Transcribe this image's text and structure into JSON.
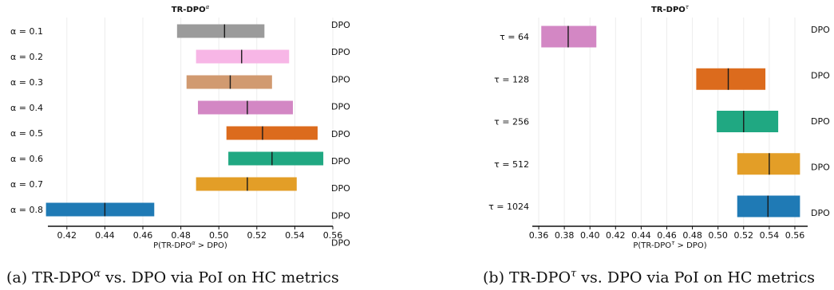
{
  "chart_data": [
    {
      "type": "interval",
      "title_base": "TR-DPO",
      "title_sup": "α",
      "xlabel_pre": "P(TR-DPO",
      "xlabel_sup": "α",
      "xlabel_post": " > DPO)",
      "xlim": [
        0.41,
        0.56
      ],
      "xticks": [
        "0.42",
        "0.44",
        "0.46",
        "0.48",
        "0.50",
        "0.52",
        "0.54",
        "0.56"
      ],
      "right_label": "DPO",
      "grid": true,
      "rows": [
        {
          "label": "α = 0.1",
          "low": 0.478,
          "high": 0.524,
          "mean": 0.503,
          "color": "#9b9b9b"
        },
        {
          "label": "α = 0.2",
          "low": 0.488,
          "high": 0.537,
          "mean": 0.512,
          "color": "#f7b6e6"
        },
        {
          "label": "α = 0.3",
          "low": 0.483,
          "high": 0.528,
          "mean": 0.506,
          "color": "#d19a70"
        },
        {
          "label": "α = 0.4",
          "low": 0.489,
          "high": 0.539,
          "mean": 0.515,
          "color": "#d387c4"
        },
        {
          "label": "α = 0.5",
          "low": 0.504,
          "high": 0.552,
          "mean": 0.523,
          "color": "#dc6b1d"
        },
        {
          "label": "α = 0.6",
          "low": 0.505,
          "high": 0.555,
          "mean": 0.528,
          "color": "#20a882"
        },
        {
          "label": "α = 0.7",
          "low": 0.488,
          "high": 0.541,
          "mean": 0.515,
          "color": "#e39e27"
        },
        {
          "label": "α = 0.8",
          "low": 0.409,
          "high": 0.466,
          "mean": 0.44,
          "color": "#1f7ab5"
        }
      ]
    },
    {
      "type": "interval",
      "title_base": "TR-DPO",
      "title_sup": "τ",
      "xlabel_pre": "P(TR-DPO",
      "xlabel_sup": "τ",
      "xlabel_post": " > DPO)",
      "xlim": [
        0.355,
        0.57
      ],
      "xticks": [
        "0.36",
        "0.38",
        "0.40",
        "0.42",
        "0.44",
        "0.46",
        "0.48",
        "0.50",
        "0.52",
        "0.54",
        "0.56"
      ],
      "right_label": "DPO",
      "grid": true,
      "rows": [
        {
          "label": "τ = 64",
          "low": 0.362,
          "high": 0.405,
          "mean": 0.383,
          "color": "#d387c4"
        },
        {
          "label": "τ = 128",
          "low": 0.483,
          "high": 0.537,
          "mean": 0.508,
          "color": "#dc6b1d"
        },
        {
          "label": "τ = 256",
          "low": 0.499,
          "high": 0.547,
          "mean": 0.52,
          "color": "#20a882"
        },
        {
          "label": "τ = 512",
          "low": 0.515,
          "high": 0.564,
          "mean": 0.54,
          "color": "#e39e27"
        },
        {
          "label": "τ = 1024",
          "low": 0.515,
          "high": 0.564,
          "mean": 0.539,
          "color": "#1f7ab5"
        }
      ]
    }
  ],
  "captions": {
    "a_pre": "(a) TR-DPO",
    "a_sup": "α",
    "a_post": " vs. DPO via PoI on HC metrics",
    "b_pre": "(b) TR-DPO",
    "b_sup": "τ",
    "b_post": " vs. DPO via PoI on HC metrics"
  }
}
